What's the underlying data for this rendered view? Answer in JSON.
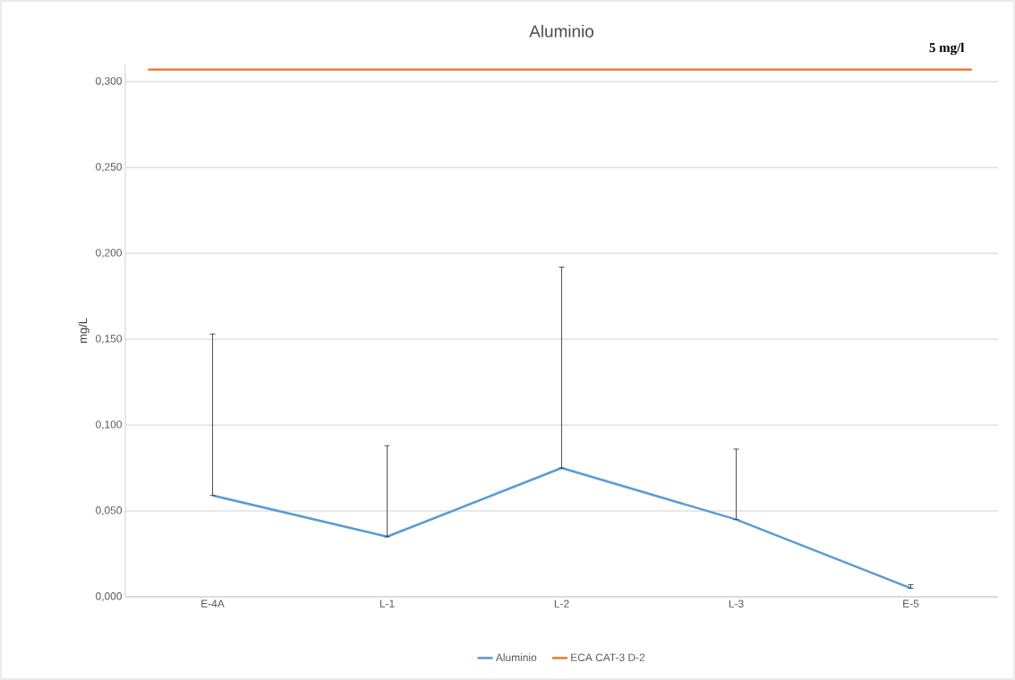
{
  "chart_data": {
    "type": "line",
    "title": "Aluminio",
    "ylabel": "mg/L",
    "categories": [
      "E-4A",
      "L-1",
      "L-2",
      "L-3",
      "E-5"
    ],
    "series": [
      {
        "name": "Aluminio",
        "color": "#5b9bd5",
        "values": [
          0.059,
          0.035,
          0.075,
          0.045,
          0.005
        ],
        "errors": [
          [
            0.059,
            0.153
          ],
          [
            0.035,
            0.088
          ],
          [
            0.075,
            0.192
          ],
          [
            0.045,
            0.086
          ],
          [
            0.005,
            0.007
          ]
        ]
      }
    ],
    "ref_lines": [
      {
        "axis": "y",
        "value": 0.307,
        "label": "ECA CAT-3 D-2",
        "color": "#ed7d31",
        "line_style": "solid"
      }
    ],
    "annotations": [
      "5 mg/l"
    ],
    "ylim": [
      0,
      0.31
    ],
    "yticks": [
      {
        "value": 0,
        "label": "0,000"
      },
      {
        "value": 0.05,
        "label": "0,050"
      },
      {
        "value": 0.1,
        "label": "0,100"
      },
      {
        "value": 0.15,
        "label": "0,150"
      },
      {
        "value": 0.2,
        "label": "0,200"
      },
      {
        "value": 0.25,
        "label": "0,250"
      },
      {
        "value": 0.3,
        "label": "0,300"
      }
    ],
    "grid": "y",
    "legend": "bottom",
    "marker": "none",
    "line_style": "solid"
  }
}
